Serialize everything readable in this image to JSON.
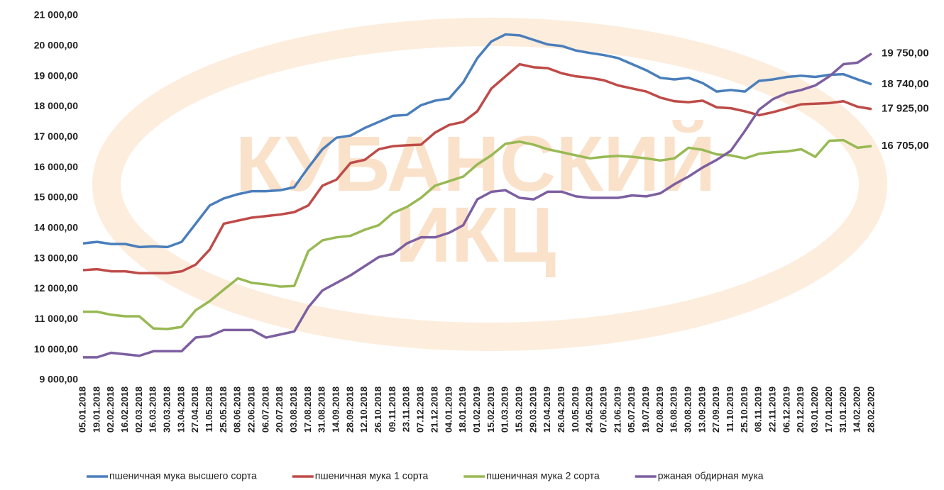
{
  "chart_data": {
    "type": "line",
    "watermark": [
      "КУБАНСКИЙ",
      "ИКЦ"
    ],
    "categories": [
      "05.01.2018",
      "19.01.2018",
      "02.02.2018",
      "16.02.2018",
      "02.03.2018",
      "16.03.2018",
      "30.03.2018",
      "13.04.2018",
      "27.04.2018",
      "11.05.2018",
      "25.05.2018",
      "08.06.2018",
      "22.06.2018",
      "06.07.2018",
      "20.07.2018",
      "03.08.2018",
      "17.08.2018",
      "31.08.2018",
      "14.09.2018",
      "28.09.2018",
      "12.10.2018",
      "26.10.2018",
      "09.11.2018",
      "23.11.2018",
      "07.12.2018",
      "21.12.2018",
      "04.01.2019",
      "18.01.2019",
      "01.02.2019",
      "15.02.2019",
      "01.03.2019",
      "15.03.2019",
      "29.03.2019",
      "12.04.2019",
      "26.04.2019",
      "10.05.2019",
      "24.05.2019",
      "07.06.2019",
      "21.06.2019",
      "05.07.2019",
      "19.07.2019",
      "02.08.2019",
      "16.08.2019",
      "30.08.2019",
      "13.09.2019",
      "27.09.2019",
      "11.10.2019",
      "25.10.2019",
      "08.11.2019",
      "22.11.2019",
      "06.12.2019",
      "20.12.2019",
      "03.01.2020",
      "17.01.2020",
      "31.01.2020",
      "14.02.2020",
      "28.02.2020"
    ],
    "series": [
      {
        "name": "пшеничная мука высшего сорта",
        "color": "#4a7ebb",
        "values": [
          13500,
          13550,
          13480,
          13480,
          13380,
          13400,
          13380,
          13550,
          14150,
          14750,
          14980,
          15120,
          15220,
          15220,
          15250,
          15350,
          16000,
          16600,
          16980,
          17050,
          17300,
          17500,
          17700,
          17730,
          18050,
          18200,
          18270,
          18800,
          19600,
          20150,
          20380,
          20350,
          20200,
          20050,
          20000,
          19850,
          19770,
          19700,
          19600,
          19400,
          19200,
          18950,
          18900,
          18950,
          18780,
          18500,
          18550,
          18500,
          18850,
          18900,
          18980,
          19020,
          18980,
          19050,
          19070,
          18900,
          18740
        ],
        "value_labels": [
          null,
          null,
          null,
          null,
          null,
          null,
          null,
          null,
          null,
          null,
          null,
          null,
          null,
          null,
          null,
          null,
          null,
          null,
          null,
          null,
          null,
          null,
          null,
          null,
          null,
          null,
          null,
          null,
          null,
          null,
          null,
          null,
          null,
          null,
          null,
          null,
          null,
          null,
          null,
          null,
          null,
          null,
          null,
          null,
          null,
          null,
          null,
          null,
          null,
          null,
          null,
          null,
          null,
          null,
          null,
          null,
          "18 740,00"
        ]
      },
      {
        "name": "пшеничная мука 1 сорта",
        "color": "#be4b48",
        "values": [
          12620,
          12650,
          12580,
          12580,
          12520,
          12520,
          12520,
          12580,
          12800,
          13300,
          14150,
          14250,
          14350,
          14400,
          14450,
          14530,
          14750,
          15400,
          15600,
          16150,
          16250,
          16600,
          16700,
          16730,
          16750,
          17150,
          17400,
          17500,
          17850,
          18600,
          19000,
          19400,
          19300,
          19270,
          19100,
          19000,
          18950,
          18870,
          18700,
          18600,
          18500,
          18300,
          18180,
          18150,
          18200,
          17980,
          17950,
          17850,
          17720,
          17820,
          17950,
          18080,
          18100,
          18120,
          18180,
          18000,
          17925
        ],
        "value_labels": [
          null,
          null,
          null,
          null,
          null,
          null,
          null,
          null,
          null,
          null,
          null,
          null,
          null,
          null,
          null,
          null,
          null,
          null,
          null,
          null,
          null,
          null,
          null,
          null,
          null,
          null,
          null,
          null,
          null,
          null,
          null,
          null,
          null,
          null,
          null,
          null,
          null,
          null,
          null,
          null,
          null,
          null,
          null,
          null,
          null,
          null,
          null,
          null,
          null,
          null,
          null,
          null,
          null,
          null,
          null,
          null,
          "17 925,00"
        ]
      },
      {
        "name": "пшеничная мука 2 сорта",
        "color": "#98b954",
        "values": [
          11250,
          11250,
          11150,
          11100,
          11100,
          10700,
          10680,
          10750,
          11300,
          11600,
          11980,
          12350,
          12200,
          12150,
          12080,
          12100,
          13250,
          13600,
          13700,
          13750,
          13950,
          14100,
          14500,
          14700,
          15000,
          15400,
          15550,
          15700,
          16100,
          16400,
          16780,
          16850,
          16750,
          16600,
          16500,
          16400,
          16300,
          16350,
          16380,
          16350,
          16300,
          16230,
          16300,
          16650,
          16580,
          16430,
          16400,
          16300,
          16450,
          16500,
          16530,
          16600,
          16350,
          16880,
          16900,
          16650,
          16705
        ],
        "value_labels": [
          null,
          null,
          null,
          null,
          null,
          null,
          null,
          null,
          null,
          null,
          null,
          null,
          null,
          null,
          null,
          null,
          null,
          null,
          null,
          null,
          null,
          null,
          null,
          null,
          null,
          null,
          null,
          null,
          null,
          null,
          null,
          null,
          null,
          null,
          null,
          null,
          null,
          null,
          null,
          null,
          null,
          null,
          null,
          null,
          null,
          null,
          null,
          null,
          null,
          null,
          null,
          null,
          null,
          null,
          null,
          null,
          "16 705,00"
        ]
      },
      {
        "name": "ржаная обдирная мука",
        "color": "#7d5fa0",
        "values": [
          9750,
          9750,
          9900,
          9850,
          9800,
          9950,
          9950,
          9950,
          10400,
          10450,
          10650,
          10650,
          10650,
          10400,
          10500,
          10600,
          11400,
          11950,
          12200,
          12450,
          12750,
          13050,
          13150,
          13500,
          13700,
          13700,
          13850,
          14100,
          14950,
          15200,
          15250,
          15000,
          14950,
          15200,
          15200,
          15050,
          15000,
          15000,
          15000,
          15080,
          15050,
          15150,
          15450,
          15700,
          16000,
          16250,
          16550,
          17200,
          17900,
          18250,
          18450,
          18550,
          18700,
          19000,
          19400,
          19450,
          19750
        ],
        "value_labels": [
          null,
          null,
          null,
          null,
          null,
          null,
          null,
          null,
          null,
          null,
          null,
          null,
          null,
          null,
          null,
          null,
          null,
          null,
          null,
          null,
          null,
          null,
          null,
          null,
          null,
          null,
          null,
          null,
          null,
          null,
          null,
          null,
          null,
          null,
          null,
          null,
          null,
          null,
          null,
          null,
          null,
          null,
          null,
          null,
          null,
          null,
          null,
          null,
          null,
          null,
          null,
          null,
          null,
          null,
          null,
          null,
          "19 750,00"
        ]
      }
    ],
    "ylim": [
      9000,
      21000
    ],
    "yticks": [
      {
        "value": 9000,
        "label": "9 000,00"
      },
      {
        "value": 10000,
        "label": "10 000,00"
      },
      {
        "value": 11000,
        "label": "11 000,00"
      },
      {
        "value": 12000,
        "label": "12 000,00"
      },
      {
        "value": 13000,
        "label": "13 000,00"
      },
      {
        "value": 14000,
        "label": "14 000,00"
      },
      {
        "value": 15000,
        "label": "15 000,00"
      },
      {
        "value": 16000,
        "label": "16 000,00"
      },
      {
        "value": 17000,
        "label": "17 000,00"
      },
      {
        "value": 18000,
        "label": "18 000,00"
      },
      {
        "value": 19000,
        "label": "19 000,00"
      },
      {
        "value": 20000,
        "label": "20 000,00"
      },
      {
        "value": 21000,
        "label": "21 000,00"
      }
    ],
    "grid": false,
    "legend": "bottom"
  }
}
